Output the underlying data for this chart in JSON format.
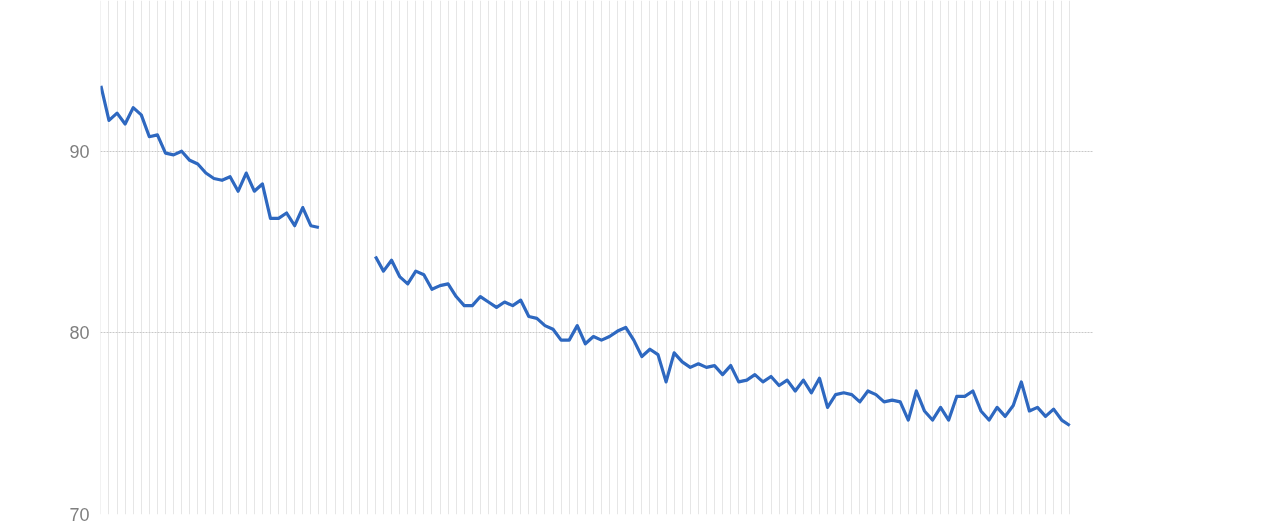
{
  "chart_data": {
    "type": "line",
    "categories": [
      null,
      null,
      null,
      null,
      null,
      null,
      null,
      null,
      null,
      null,
      null,
      null,
      null,
      null,
      null,
      null,
      null,
      null,
      null,
      null,
      null,
      null,
      null,
      null,
      null,
      null,
      null,
      null,
      null,
      null,
      null,
      null,
      null,
      null,
      null,
      null,
      null,
      null,
      null,
      null,
      null,
      null,
      null,
      null,
      null,
      null,
      null,
      null,
      null,
      null,
      null,
      null,
      null,
      null,
      null,
      null,
      null,
      null,
      null,
      null,
      null,
      null,
      null,
      null,
      null,
      null,
      null,
      null,
      null,
      null,
      null,
      null,
      null,
      null,
      null,
      null,
      null,
      null,
      null,
      null,
      null,
      null,
      null,
      null,
      null,
      null,
      null,
      null,
      null,
      null,
      null,
      null,
      null,
      null,
      null,
      null,
      null,
      null,
      null,
      null,
      null,
      null,
      null,
      null,
      null,
      null,
      null,
      null,
      null,
      null,
      null,
      null,
      null,
      null,
      null,
      null,
      null,
      null,
      null,
      null,
      null
    ],
    "series": [
      {
        "color": "#2e68c0",
        "values": [
          93.6,
          91.7,
          92.1,
          91.5,
          92.4,
          92.0,
          90.8,
          90.9,
          89.9,
          89.8,
          90.0,
          89.5,
          89.3,
          88.8,
          88.5,
          88.4,
          88.6,
          87.8,
          88.8,
          87.8,
          88.2,
          86.3,
          86.3,
          86.6,
          85.9,
          86.9,
          85.9,
          85.8,
          null,
          null,
          null,
          null,
          null,
          null,
          null,
          null,
          null,
          null,
          null,
          null,
          null,
          null,
          null,
          null,
          null,
          null,
          null,
          null,
          null,
          null,
          null,
          null,
          null,
          null,
          null,
          null,
          null,
          null,
          null,
          null,
          null,
          null,
          null,
          null,
          null,
          null,
          null,
          null,
          null,
          null,
          null,
          null,
          null,
          null,
          null,
          null,
          null,
          null,
          null,
          null,
          null,
          null,
          null,
          null,
          null,
          null,
          null,
          null,
          null,
          null,
          null,
          null,
          null,
          null,
          null,
          null,
          null,
          null,
          null,
          null,
          null,
          null,
          null,
          null,
          null,
          null,
          null,
          null,
          null,
          null,
          null,
          null,
          null,
          null,
          null,
          null,
          null,
          null,
          null,
          null,
          null
        ]
      },
      {
        "color": "#2e68c0",
        "values": [
          null,
          null,
          null,
          null,
          null,
          null,
          null,
          null,
          null,
          null,
          null,
          null,
          null,
          null,
          null,
          null,
          null,
          null,
          null,
          null,
          null,
          null,
          null,
          null,
          null,
          null,
          null,
          null,
          null,
          null,
          null,
          null,
          null,
          null,
          84.2,
          83.4,
          84.0,
          83.1,
          82.7,
          83.4,
          83.2,
          82.4,
          82.6,
          82.7,
          82.0,
          81.5,
          81.5,
          82.0,
          81.7,
          81.4,
          81.7,
          81.5,
          81.8,
          80.9,
          80.8,
          80.4,
          80.2,
          79.6,
          79.6,
          80.4,
          79.4,
          79.8,
          79.6,
          79.8,
          80.1,
          80.3,
          79.6,
          78.7,
          79.1,
          78.8,
          77.3,
          78.9,
          78.4,
          78.1,
          78.3,
          78.1,
          78.2,
          77.7,
          78.2,
          77.3,
          77.4,
          77.7,
          77.3,
          77.6,
          77.1,
          77.4,
          76.8,
          77.4,
          76.7,
          77.5,
          75.9,
          76.6,
          76.7,
          76.6,
          76.2,
          76.8,
          76.6,
          76.2,
          76.3,
          76.2,
          75.2,
          76.8,
          75.7,
          75.2,
          75.9,
          75.2,
          76.5,
          76.5,
          76.8,
          75.7,
          75.2,
          75.9,
          75.4,
          76.0,
          77.3,
          75.7,
          75.9,
          75.4,
          75.8,
          75.2,
          74.9
        ]
      }
    ],
    "ylim": [
      70,
      98.3
    ],
    "yticks": [
      70,
      80,
      90
    ],
    "grid": true,
    "marker": "none",
    "line_style": "solid"
  }
}
